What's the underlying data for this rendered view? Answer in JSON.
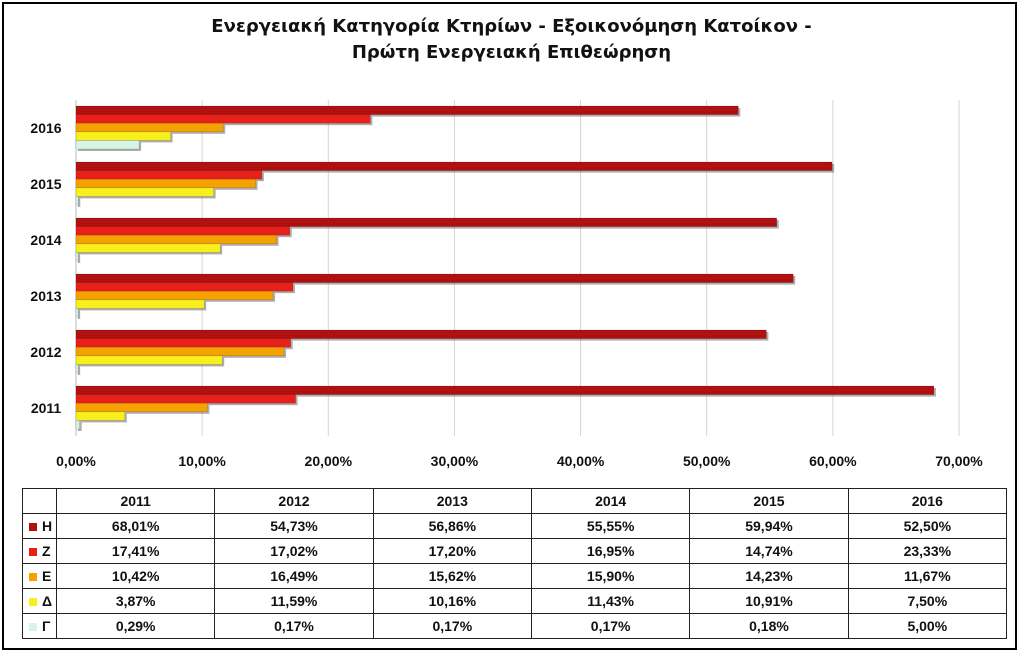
{
  "chart_data": {
    "type": "bar",
    "orientation": "horizontal",
    "title_lines": [
      "Ενεργειακή Κατηγορία Κτηρίων - Εξοικονόμηση Κατοίκον -",
      "Πρώτη Ενεργειακή Επιθεώρηση"
    ],
    "categories": [
      "2011",
      "2012",
      "2013",
      "2014",
      "2015",
      "2016"
    ],
    "x_ticks": [
      "0,00%",
      "10,00%",
      "20,00%",
      "30,00%",
      "40,00%",
      "50,00%",
      "60,00%",
      "70,00%"
    ],
    "xlim": [
      0,
      70
    ],
    "grid": true,
    "series": [
      {
        "name": "Η",
        "color": "#b01010",
        "values": [
          68.01,
          54.73,
          56.86,
          55.55,
          59.94,
          52.5
        ],
        "labels": [
          "68,01%",
          "54,73%",
          "56,86%",
          "55,55%",
          "59,94%",
          "52,50%"
        ]
      },
      {
        "name": "Ζ",
        "color": "#e8201a",
        "values": [
          17.41,
          17.02,
          17.2,
          16.95,
          14.74,
          23.33
        ],
        "labels": [
          "17,41%",
          "17,02%",
          "17,20%",
          "16,95%",
          "14,74%",
          "23,33%"
        ]
      },
      {
        "name": "Ε",
        "color": "#f5a200",
        "values": [
          10.42,
          16.49,
          15.62,
          15.9,
          14.23,
          11.67
        ],
        "labels": [
          "10,42%",
          "16,49%",
          "15,62%",
          "15,90%",
          "14,23%",
          "11,67%"
        ]
      },
      {
        "name": "Δ",
        "color": "#f7ef1e",
        "values": [
          3.87,
          11.59,
          10.16,
          11.43,
          10.91,
          7.5
        ],
        "labels": [
          "3,87%",
          "11,59%",
          "10,16%",
          "11,43%",
          "10,91%",
          "7,50%"
        ]
      },
      {
        "name": "Γ",
        "color": "#d8f5e4",
        "values": [
          0.29,
          0.17,
          0.17,
          0.17,
          0.18,
          5.0
        ],
        "labels": [
          "0,29%",
          "0,17%",
          "0,17%",
          "0,17%",
          "0,18%",
          "5,00%"
        ]
      }
    ]
  }
}
